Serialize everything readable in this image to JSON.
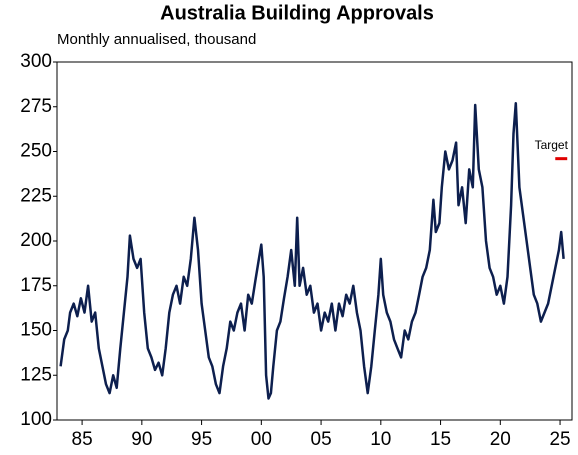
{
  "chart_data": {
    "type": "line",
    "title": "Australia Building Approvals",
    "subtitle": "Monthly annualised, thousand",
    "x": [
      1983.2,
      1983.5,
      1983.8,
      1984.0,
      1984.3,
      1984.6,
      1984.9,
      1985.2,
      1985.5,
      1985.8,
      1986.1,
      1986.4,
      1986.7,
      1987.0,
      1987.3,
      1987.6,
      1987.9,
      1988.2,
      1988.5,
      1988.8,
      1989.0,
      1989.3,
      1989.6,
      1989.9,
      1990.2,
      1990.5,
      1990.8,
      1991.1,
      1991.4,
      1991.7,
      1992.0,
      1992.3,
      1992.6,
      1992.9,
      1993.2,
      1993.5,
      1993.8,
      1994.1,
      1994.4,
      1994.7,
      1995.0,
      1995.3,
      1995.6,
      1995.9,
      1996.2,
      1996.5,
      1996.8,
      1997.1,
      1997.4,
      1997.7,
      1998.0,
      1998.3,
      1998.6,
      1998.9,
      1999.2,
      1999.5,
      1999.8,
      2000.0,
      2000.2,
      2000.4,
      2000.6,
      2000.8,
      2001.0,
      2001.3,
      2001.6,
      2001.9,
      2002.2,
      2002.5,
      2002.8,
      2003.0,
      2003.2,
      2003.5,
      2003.8,
      2004.1,
      2004.4,
      2004.7,
      2005.0,
      2005.3,
      2005.6,
      2005.9,
      2006.2,
      2006.5,
      2006.8,
      2007.1,
      2007.4,
      2007.7,
      2008.0,
      2008.3,
      2008.6,
      2008.9,
      2009.2,
      2009.5,
      2009.8,
      2010.0,
      2010.2,
      2010.5,
      2010.8,
      2011.1,
      2011.4,
      2011.7,
      2012.0,
      2012.3,
      2012.6,
      2012.9,
      2013.2,
      2013.5,
      2013.8,
      2014.1,
      2014.4,
      2014.6,
      2014.9,
      2015.1,
      2015.4,
      2015.7,
      2016.0,
      2016.3,
      2016.5,
      2016.8,
      2017.1,
      2017.4,
      2017.7,
      2017.9,
      2018.2,
      2018.5,
      2018.8,
      2019.1,
      2019.4,
      2019.7,
      2020.0,
      2020.3,
      2020.6,
      2020.9,
      2021.1,
      2021.3,
      2021.6,
      2021.9,
      2022.2,
      2022.5,
      2022.8,
      2023.1,
      2023.4,
      2023.7,
      2024.0,
      2024.3,
      2024.6,
      2024.9,
      2025.1,
      2025.3
    ],
    "series": [
      {
        "color": "#0d1f4e",
        "values": [
          130,
          145,
          150,
          160,
          165,
          158,
          168,
          160,
          175,
          155,
          160,
          140,
          130,
          120,
          115,
          125,
          118,
          140,
          160,
          180,
          203,
          190,
          185,
          190,
          160,
          140,
          135,
          128,
          132,
          125,
          140,
          160,
          170,
          175,
          165,
          180,
          175,
          190,
          213,
          195,
          165,
          150,
          135,
          130,
          120,
          115,
          130,
          140,
          155,
          150,
          160,
          165,
          150,
          170,
          165,
          178,
          190,
          198,
          180,
          125,
          112,
          115,
          130,
          150,
          155,
          168,
          180,
          195,
          175,
          213,
          175,
          185,
          170,
          175,
          160,
          165,
          150,
          160,
          155,
          165,
          150,
          165,
          158,
          170,
          165,
          175,
          160,
          150,
          130,
          115,
          130,
          150,
          170,
          190,
          170,
          160,
          155,
          145,
          140,
          135,
          150,
          145,
          155,
          160,
          170,
          180,
          185,
          195,
          223,
          205,
          210,
          230,
          250,
          240,
          245,
          255,
          220,
          230,
          210,
          240,
          230,
          276,
          240,
          230,
          200,
          185,
          180,
          170,
          175,
          165,
          180,
          220,
          260,
          277,
          230,
          215,
          200,
          185,
          170,
          165,
          155,
          160,
          165,
          175,
          185,
          195,
          205,
          190
        ]
      }
    ],
    "annotations": [
      {
        "text": "Target",
        "x": [
          2024.6,
          2025.6
        ],
        "value": 246,
        "color": "#e00000"
      }
    ],
    "xlim": [
      1982.9,
      2026.0
    ],
    "xticks": [
      {
        "value": 1985,
        "label": "85"
      },
      {
        "value": 1990,
        "label": "90"
      },
      {
        "value": 1995,
        "label": "95"
      },
      {
        "value": 2000,
        "label": "00"
      },
      {
        "value": 2005,
        "label": "05"
      },
      {
        "value": 2010,
        "label": "10"
      },
      {
        "value": 2015,
        "label": "15"
      },
      {
        "value": 2020,
        "label": "20"
      },
      {
        "value": 2025,
        "label": "25"
      }
    ],
    "ylim": [
      100,
      300
    ],
    "yticks": [
      100,
      125,
      150,
      175,
      200,
      225,
      250,
      275,
      300
    ]
  }
}
